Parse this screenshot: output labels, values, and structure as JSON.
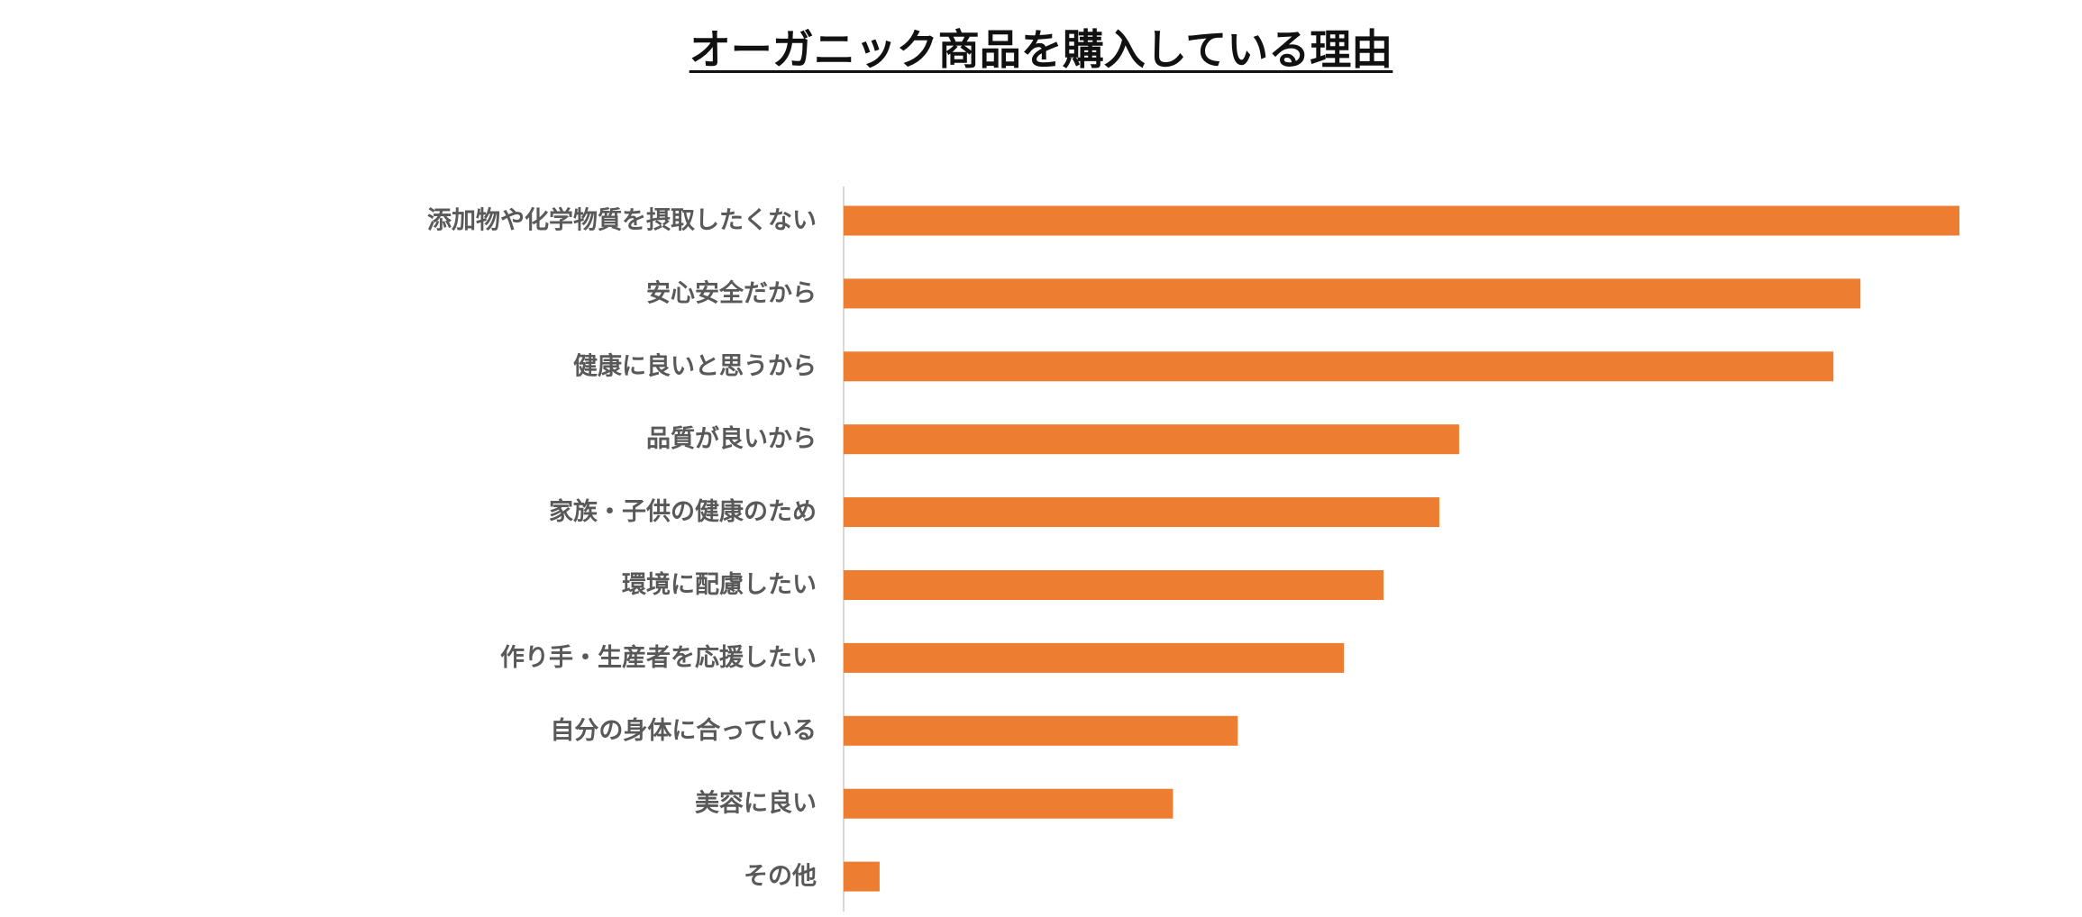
{
  "chart_data": {
    "type": "bar",
    "orientation": "horizontal",
    "title": "オーガニック商品を購入している理由",
    "xlabel": "",
    "ylabel": "",
    "categories": [
      "添加物や化学物質を摂取したくない",
      "安心安全だから",
      "健康に良いと思うから",
      "品質が良いから",
      "家族・子供の健康のため",
      "環境に配慮したい",
      "作り手・生産者を応援したい",
      "自分の身体に合っている",
      "美容に良い",
      "その他"
    ],
    "values": [
      62.0,
      56.5,
      55.0,
      34.2,
      33.1,
      30.0,
      27.8,
      21.9,
      18.3,
      2.0
    ],
    "xlim": [
      0,
      62
    ],
    "grid": false,
    "legend": "none",
    "bar_color": "#ED7D31",
    "axis_color": "#D9D9D9"
  }
}
